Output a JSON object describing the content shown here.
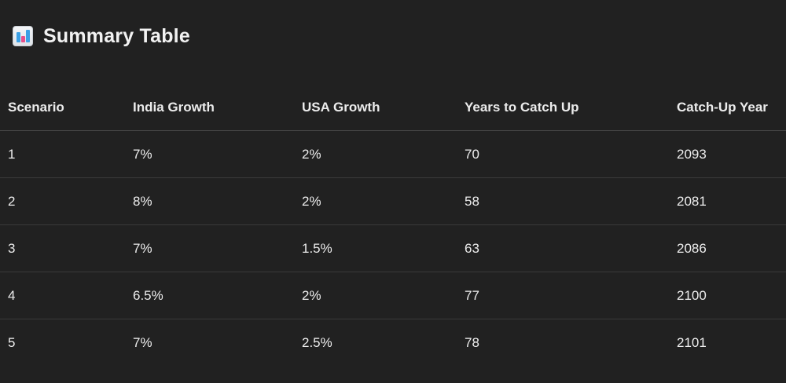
{
  "heading": {
    "icon": "bar-chart-icon",
    "title": "Summary Table"
  },
  "table": {
    "columns": [
      "Scenario",
      "India Growth",
      "USA Growth",
      "Years to Catch Up",
      "Catch-Up Year"
    ],
    "rows": [
      [
        "1",
        "7%",
        "2%",
        "70",
        "2093"
      ],
      [
        "2",
        "8%",
        "2%",
        "58",
        "2081"
      ],
      [
        "3",
        "7%",
        "1.5%",
        "63",
        "2086"
      ],
      [
        "4",
        "6.5%",
        "2%",
        "77",
        "2100"
      ],
      [
        "5",
        "7%",
        "2.5%",
        "78",
        "2101"
      ]
    ]
  }
}
